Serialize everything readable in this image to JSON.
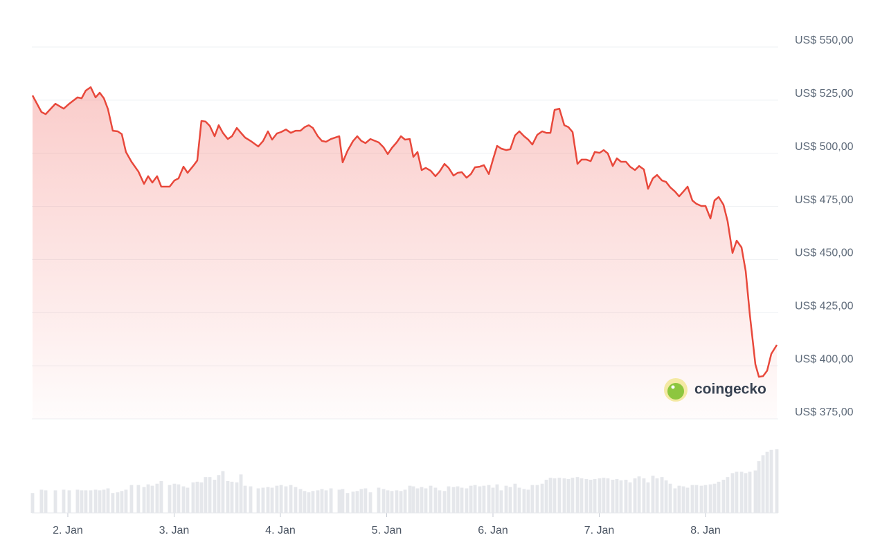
{
  "chart_data": {
    "type": "line",
    "color": "#e8483b",
    "volume_color": "#e5e7eb",
    "grid": true,
    "watermark": "coingecko",
    "xlim": [
      1.668,
      8.671
    ],
    "xticks": [
      {
        "value": 2,
        "label": "2. Jan"
      },
      {
        "value": 3,
        "label": "3. Jan"
      },
      {
        "value": 4,
        "label": "4. Jan"
      },
      {
        "value": 5,
        "label": "5. Jan"
      },
      {
        "value": 6,
        "label": "6. Jan"
      },
      {
        "value": 7,
        "label": "7. Jan"
      },
      {
        "value": 8,
        "label": "8. Jan"
      }
    ],
    "ylim": [
      375,
      550
    ],
    "yticks": [
      {
        "value": 550,
        "label": "US$ 550,00"
      },
      {
        "value": 525,
        "label": "US$ 525,00"
      },
      {
        "value": 500,
        "label": "US$ 500,00"
      },
      {
        "value": 475,
        "label": "US$ 475,00"
      },
      {
        "value": 450,
        "label": "US$ 450,00"
      },
      {
        "value": 425,
        "label": "US$ 425,00"
      },
      {
        "value": 400,
        "label": "US$ 400,00"
      },
      {
        "value": 375,
        "label": "US$ 375,00"
      }
    ],
    "x": [
      1.668,
      1.752,
      1.792,
      1.883,
      1.961,
      2.013,
      2.091,
      2.13,
      2.169,
      2.215,
      2.261,
      2.3,
      2.339,
      2.378,
      2.423,
      2.469,
      2.508,
      2.547,
      2.599,
      2.664,
      2.717,
      2.756,
      2.795,
      2.84,
      2.879,
      2.958,
      3.003,
      3.042,
      3.088,
      3.127,
      3.179,
      3.218,
      3.257,
      3.296,
      3.336,
      3.381,
      3.42,
      3.459,
      3.505,
      3.544,
      3.59,
      3.629,
      3.668,
      3.72,
      3.792,
      3.837,
      3.883,
      3.922,
      3.967,
      4.007,
      4.052,
      4.098,
      4.143,
      4.189,
      4.228,
      4.267,
      4.306,
      4.352,
      4.391,
      4.43,
      4.476,
      4.554,
      4.586,
      4.632,
      4.684,
      4.723,
      4.762,
      4.801,
      4.847,
      4.925,
      4.971,
      5.01,
      5.049,
      5.094,
      5.134,
      5.173,
      5.218,
      5.251,
      5.29,
      5.329,
      5.368,
      5.414,
      5.459,
      5.498,
      5.544,
      5.583,
      5.629,
      5.668,
      5.707,
      5.752,
      5.792,
      5.831,
      5.876,
      5.915,
      5.961,
      6.0,
      6.039,
      6.078,
      6.124,
      6.163,
      6.208,
      6.248,
      6.293,
      6.332,
      6.371,
      6.417,
      6.463,
      6.502,
      6.541,
      6.58,
      6.625,
      6.671,
      6.71,
      6.749,
      6.795,
      6.834,
      6.879,
      6.919,
      6.958,
      7.003,
      7.042,
      7.081,
      7.127,
      7.166,
      7.205,
      7.251,
      7.29,
      7.336,
      7.375,
      7.42,
      7.459,
      7.505,
      7.544,
      7.59,
      7.629,
      7.668,
      7.713,
      7.752,
      7.792,
      7.831,
      7.876,
      7.915,
      7.961,
      8.0,
      8.046,
      8.085,
      8.124,
      8.169,
      8.208,
      8.254,
      8.293,
      8.339,
      8.378,
      8.417,
      8.469,
      8.502,
      8.541,
      8.58,
      8.619,
      8.671
    ],
    "values": [
      527.2,
      519.4,
      518.4,
      523.3,
      521.0,
      523.3,
      526.3,
      525.9,
      529.5,
      531.1,
      526.3,
      528.5,
      525.9,
      520.7,
      510.6,
      510.3,
      509.0,
      500.6,
      496.0,
      491.4,
      485.6,
      489.2,
      486.2,
      489.2,
      484.3,
      484.3,
      487.2,
      488.2,
      493.7,
      490.8,
      494.0,
      496.6,
      515.2,
      514.9,
      512.9,
      508.0,
      513.2,
      509.6,
      506.7,
      508.0,
      511.9,
      509.6,
      507.4,
      505.8,
      503.2,
      505.8,
      510.3,
      506.4,
      509.3,
      510.0,
      511.2,
      509.6,
      510.6,
      510.6,
      512.3,
      513.2,
      511.9,
      508.0,
      505.8,
      505.4,
      506.7,
      508.0,
      495.7,
      501.2,
      505.8,
      508.0,
      505.8,
      504.8,
      506.7,
      505.1,
      502.8,
      499.6,
      502.5,
      505.1,
      508.0,
      506.4,
      506.7,
      498.3,
      500.6,
      492.1,
      493.1,
      491.8,
      489.2,
      491.4,
      495.0,
      493.1,
      489.5,
      490.8,
      491.1,
      488.5,
      490.2,
      493.4,
      493.7,
      494.4,
      490.2,
      497.0,
      503.5,
      502.2,
      501.5,
      501.9,
      508.4,
      510.3,
      508.0,
      506.4,
      504.1,
      508.7,
      510.3,
      509.6,
      509.6,
      520.4,
      521.0,
      513.2,
      512.3,
      510.0,
      495.0,
      497.0,
      497.0,
      496.3,
      500.6,
      500.2,
      501.5,
      499.9,
      494.0,
      497.6,
      496.0,
      496.0,
      493.7,
      492.1,
      494.0,
      492.4,
      483.3,
      488.2,
      489.8,
      487.2,
      486.5,
      484.0,
      482.0,
      479.7,
      482.0,
      484.3,
      477.8,
      476.2,
      475.2,
      475.2,
      469.3,
      477.8,
      479.4,
      475.8,
      468.0,
      453.1,
      458.9,
      455.7,
      444.6,
      424.1,
      400.7,
      394.8,
      395.1,
      397.7,
      405.6,
      409.8
    ],
    "volume": [
      30,
      35,
      34,
      34,
      35,
      34,
      35,
      34,
      34,
      34,
      35,
      34,
      35,
      37,
      30,
      31,
      33,
      35,
      42,
      42,
      39,
      43,
      41,
      44,
      48,
      42,
      44,
      43,
      40,
      38,
      46,
      47,
      46,
      54,
      54,
      50,
      57,
      63,
      48,
      47,
      46,
      58,
      41,
      40,
      37,
      38,
      39,
      38,
      41,
      42,
      40,
      42,
      39,
      36,
      33,
      31,
      33,
      34,
      36,
      34,
      37,
      35,
      36,
      30,
      32,
      33,
      36,
      37,
      31,
      38,
      36,
      34,
      33,
      34,
      33,
      35,
      41,
      40,
      37,
      39,
      37,
      41,
      38,
      34,
      33,
      40,
      39,
      40,
      38,
      37,
      41,
      42,
      40,
      41,
      42,
      38,
      43,
      34,
      41,
      39,
      44,
      38,
      36,
      35,
      42,
      42,
      44,
      50,
      53,
      52,
      53,
      52,
      51,
      53,
      54,
      52,
      51,
      50,
      51,
      52,
      53,
      52,
      50,
      51,
      49,
      50,
      46,
      52,
      55,
      52,
      46,
      56,
      52,
      54,
      49,
      44,
      37,
      41,
      40,
      38,
      42,
      42,
      41,
      42,
      43,
      44,
      47,
      50,
      54,
      60,
      62,
      62,
      60,
      62,
      64,
      78,
      87,
      92,
      95,
      96
    ]
  }
}
